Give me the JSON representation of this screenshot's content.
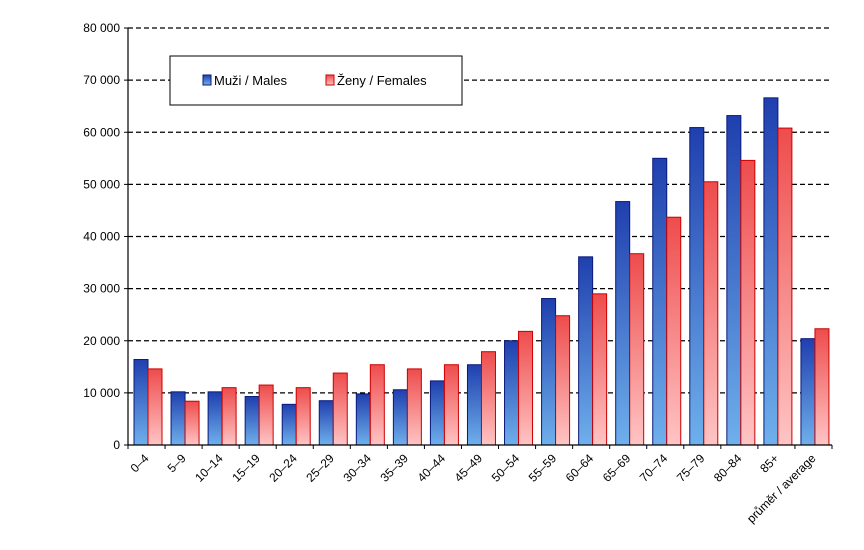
{
  "chart_data": {
    "type": "bar",
    "categories": [
      "0–4",
      "5–9",
      "10–14",
      "15–19",
      "20–24",
      "25–29",
      "30–34",
      "35–39",
      "40–44",
      "45–49",
      "50–54",
      "55–59",
      "60–64",
      "65–69",
      "70–74",
      "75–79",
      "80–84",
      "85+",
      "průměr / average"
    ],
    "series": [
      {
        "name": "Muži / Males",
        "values": [
          16400,
          10200,
          10200,
          9300,
          7800,
          8500,
          9800,
          10600,
          12300,
          15400,
          20000,
          28100,
          36100,
          46700,
          55000,
          60900,
          63200,
          66600,
          20400
        ]
      },
      {
        "name": "Ženy / Females",
        "values": [
          14600,
          8400,
          11000,
          11500,
          11000,
          13800,
          15400,
          14600,
          15400,
          17900,
          21800,
          24800,
          29000,
          36700,
          43700,
          50500,
          54600,
          60800,
          22300
        ]
      }
    ],
    "ylim": [
      0,
      80000
    ],
    "yticks": [
      "0",
      "10 000",
      "20 000",
      "30 000",
      "40 000",
      "50 000",
      "60 000",
      "70 000",
      "80 000"
    ],
    "grid": true,
    "legend_position": "top-left",
    "colors": {
      "males_top": "#1f3fae",
      "males_bottom": "#6fb0ec",
      "males_stroke": "#0a1a7a",
      "females_top": "#ee4c4c",
      "females_bottom": "#ffc4c4",
      "females_stroke": "#cc0000"
    }
  }
}
